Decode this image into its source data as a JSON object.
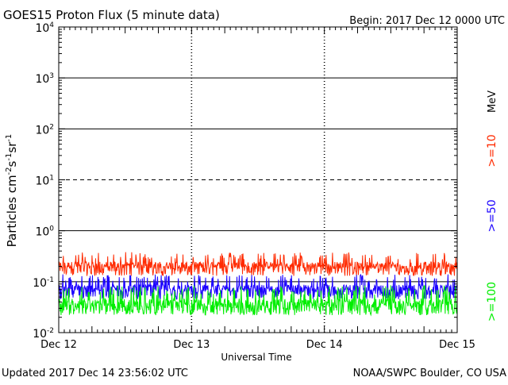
{
  "chart_data": {
    "type": "line",
    "title": "GOES15 Proton Flux (5 minute data)",
    "begin_label": "Begin: 2017 Dec 12 0000 UTC",
    "xlabel": "Universal Time",
    "ylabel_base": "Particles cm",
    "ylabel_tail": "s",
    "ylabel_end": "sr",
    "ylabel_exp_a": "-2",
    "ylabel_exp_b": "-1",
    "ylabel_exp_c": "-1",
    "footer_left": "Updated 2017 Dec 14 23:56:02 UTC",
    "footer_right": "NOAA/SWPC Boulder, CO USA",
    "unit_label": "MeV",
    "y_scale": "log",
    "ylim": [
      0.01,
      10000
    ],
    "y_ticks": [
      {
        "base": "10",
        "exp": "-2",
        "value": 0.01
      },
      {
        "base": "10",
        "exp": "-1",
        "value": 0.1
      },
      {
        "base": "10",
        "exp": "0",
        "value": 1
      },
      {
        "base": "10",
        "exp": "1",
        "value": 10
      },
      {
        "base": "10",
        "exp": "2",
        "value": 100
      },
      {
        "base": "10",
        "exp": "3",
        "value": 1000
      },
      {
        "base": "10",
        "exp": "4",
        "value": 10000
      }
    ],
    "x_range_days": [
      0,
      3
    ],
    "x_ticks": [
      {
        "label": "Dec 12",
        "day": 0
      },
      {
        "label": "Dec 13",
        "day": 1
      },
      {
        "label": "Dec 14",
        "day": 2
      },
      {
        "label": "Dec 15",
        "day": 3
      }
    ],
    "threshold_lines": [
      {
        "value": 1000,
        "style": "solid"
      },
      {
        "value": 100,
        "style": "solid"
      },
      {
        "value": 10,
        "style": "dashed"
      },
      {
        "value": 1,
        "style": "solid"
      },
      {
        "value": 0.1,
        "style": "solid"
      }
    ],
    "series": [
      {
        "name": ">=10",
        "color": "#ff2a00",
        "base": 0.2,
        "low": 0.13,
        "high": 0.38
      },
      {
        "name": ">=50",
        "color": "#1a00ff",
        "base": 0.07,
        "low": 0.045,
        "high": 0.14
      },
      {
        "name": ">=100",
        "color": "#00ee00",
        "base": 0.035,
        "low": 0.022,
        "high": 0.085
      }
    ]
  }
}
